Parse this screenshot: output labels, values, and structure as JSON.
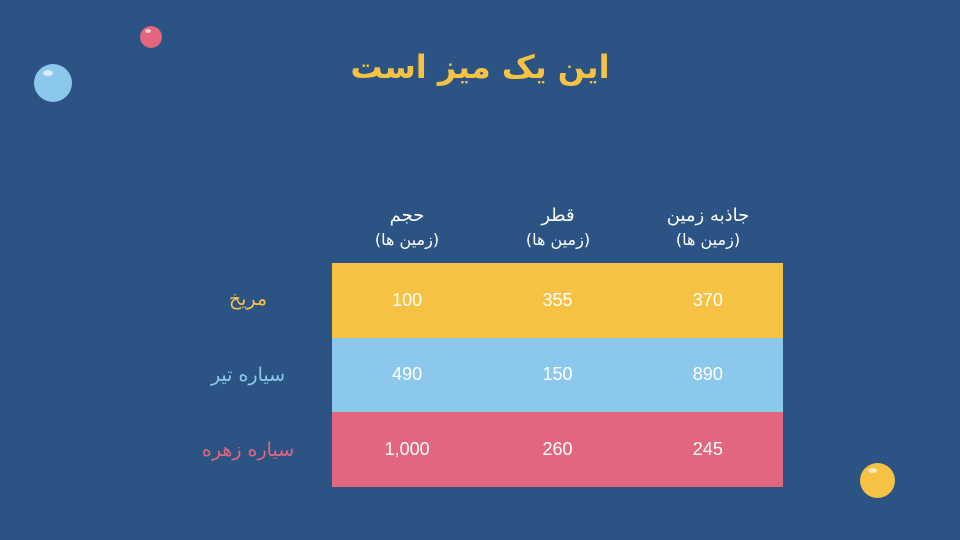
{
  "title": "این یک میز است",
  "colors": {
    "background": "#2b5384",
    "yellow": "#f6c244",
    "blue": "#8cc8ec",
    "red": "#e2667d"
  },
  "columns": [
    {
      "name": "حجم",
      "unit": "(زمین ها)"
    },
    {
      "name": "قطر",
      "unit": "(زمین ها)"
    },
    {
      "name": "جاذبه زمین",
      "unit": "(زمین ها)"
    }
  ],
  "rows": [
    {
      "label": "مریخ",
      "values": [
        "100",
        "355",
        "370"
      ]
    },
    {
      "label": "سیاره تیر",
      "values": [
        "490",
        "150",
        "890"
      ]
    },
    {
      "label": "سیاره زهره",
      "values": [
        "1,000",
        "260",
        "245"
      ]
    }
  ]
}
